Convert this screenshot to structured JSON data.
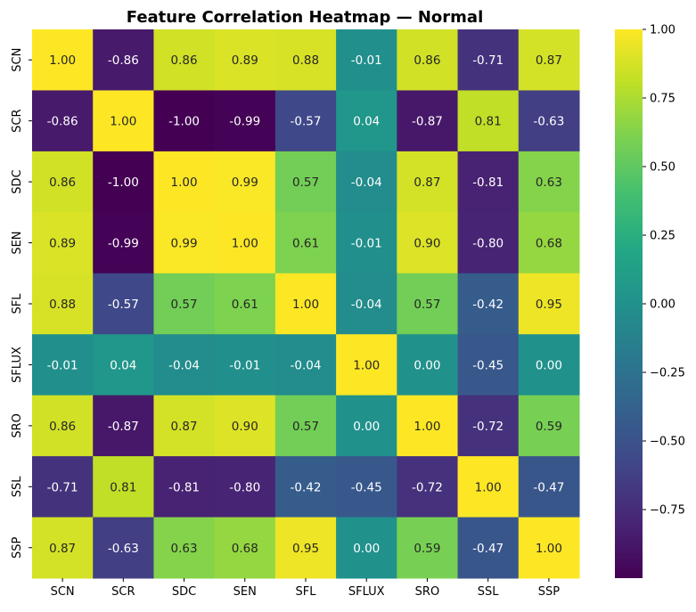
{
  "chart_data": {
    "type": "heatmap",
    "title": "Feature Correlation Heatmap — Normal",
    "xlabel": "",
    "ylabel": "",
    "x_labels": [
      "SCN",
      "SCR",
      "SDC",
      "SEN",
      "SFL",
      "SFLUX",
      "SRO",
      "SSL",
      "SSP"
    ],
    "y_labels": [
      "SCN",
      "SCR",
      "SDC",
      "SEN",
      "SFL",
      "SFLUX",
      "SRO",
      "SSL",
      "SSP"
    ],
    "values": [
      [
        1.0,
        -0.86,
        0.86,
        0.89,
        0.88,
        -0.01,
        0.86,
        -0.71,
        0.87
      ],
      [
        -0.86,
        1.0,
        -1.0,
        -0.99,
        -0.57,
        0.04,
        -0.87,
        0.81,
        -0.63
      ],
      [
        0.86,
        -1.0,
        1.0,
        0.99,
        0.57,
        -0.04,
        0.87,
        -0.81,
        0.63
      ],
      [
        0.89,
        -0.99,
        0.99,
        1.0,
        0.61,
        -0.01,
        0.9,
        -0.8,
        0.68
      ],
      [
        0.88,
        -0.57,
        0.57,
        0.61,
        1.0,
        -0.04,
        0.57,
        -0.42,
        0.95
      ],
      [
        -0.01,
        0.04,
        -0.04,
        -0.01,
        -0.04,
        1.0,
        -0.0,
        -0.45,
        0.0
      ],
      [
        0.86,
        -0.87,
        0.87,
        0.9,
        0.57,
        -0.0,
        1.0,
        -0.72,
        0.59
      ],
      [
        -0.71,
        0.81,
        -0.81,
        -0.8,
        -0.42,
        -0.45,
        -0.72,
        1.0,
        -0.47
      ],
      [
        0.87,
        -0.63,
        0.63,
        0.68,
        0.95,
        0.0,
        0.59,
        -0.47,
        1.0
      ]
    ],
    "value_format": "0.00",
    "colormap": "viridis",
    "vmin": -1.0,
    "vmax": 1.0,
    "colorbar_ticks": [
      1.0,
      0.75,
      0.5,
      0.25,
      0.0,
      -0.25,
      -0.5,
      -0.75
    ],
    "colorbar_tick_labels": [
      "1.00",
      "0.75",
      "0.50",
      "0.25",
      "0.00",
      "−0.25",
      "−0.50",
      "−0.75"
    ],
    "grid": false,
    "legend": "colorbar-right"
  }
}
